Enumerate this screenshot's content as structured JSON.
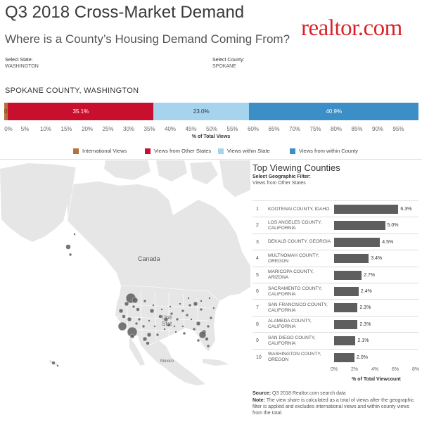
{
  "header": {
    "title": "Q3 2018 Cross-Market Demand",
    "subtitle": "Where is a County’s Housing Demand Coming From?",
    "logo": "realtor.com"
  },
  "filters": {
    "state_label": "Select State:",
    "state_value": "WASHINGTON",
    "county_label": "Select County:",
    "county_value": "SPOKANE"
  },
  "region_title": "SPOKANE COUNTY, WASHINGTON",
  "share_bar": {
    "segments": [
      {
        "name": "International Views",
        "value": 0.9,
        "label": "0.9%",
        "color": "#b5723a",
        "text_color": "#6b3a10"
      },
      {
        "name": "Views from Other States",
        "value": 35.1,
        "label": "35.1%",
        "color": "#c8102e",
        "text_color": "#ffffff"
      },
      {
        "name": "Views within State",
        "value": 23.0,
        "label": "23.0%",
        "color": "#a6d4ee",
        "text_color": "#333333"
      },
      {
        "name": "Views from within County",
        "value": 40.9,
        "label": "40.9%",
        "color": "#3b8fc6",
        "text_color": "#ffffff"
      }
    ],
    "ticks": [
      "0%",
      "5%",
      "10%",
      "15%",
      "20%",
      "25%",
      "30%",
      "35%",
      "40%",
      "45%",
      "50%",
      "55%",
      "60%",
      "65%",
      "70%",
      "75%",
      "80%",
      "85%",
      "90%",
      "95%"
    ],
    "axis_title": "% of Total Views"
  },
  "legend": [
    {
      "label": "International Views",
      "color": "#b5723a"
    },
    {
      "label": "Views from Other States",
      "color": "#c8102e"
    },
    {
      "label": "Views within State",
      "color": "#a6d4ee"
    },
    {
      "label": "Views from within County",
      "color": "#3b8fc6"
    }
  ],
  "map": {
    "labels": {
      "canada": "Canada",
      "us": "Unit\nStat",
      "mexico": "Mexico"
    },
    "land_color": "#e6e6e6",
    "ocean_color": "#ffffff",
    "bubble_color": "#5e5e5e"
  },
  "top_counties": {
    "title": "Top Viewing Counties",
    "filter_label": "Select Geographic Filter:",
    "filter_value": "Views from Other States",
    "rows": [
      {
        "rank": "1",
        "county": "KOOTENAI COUNTY, IDAHO",
        "value": 6.3,
        "label": "6.3%"
      },
      {
        "rank": "2",
        "county": "LOS ANGELES COUNTY, CALIFORNIA",
        "value": 5.0,
        "label": "5.0%"
      },
      {
        "rank": "3",
        "county": "DEKALB COUNTY, GEORGIA",
        "value": 4.5,
        "label": "4.5%"
      },
      {
        "rank": "4",
        "county": "MULTNOMAH COUNTY, OREGON",
        "value": 3.4,
        "label": "3.4%"
      },
      {
        "rank": "5",
        "county": "MARICOPA COUNTY, ARIZONA",
        "value": 2.7,
        "label": "2.7%"
      },
      {
        "rank": "6",
        "county": "SACRAMENTO COUNTY, CALIFORNIA",
        "value": 2.4,
        "label": "2.4%"
      },
      {
        "rank": "7",
        "county": "SAN FRANCISCO COUNTY, CALIFORNIA",
        "value": 2.3,
        "label": "2.3%"
      },
      {
        "rank": "8",
        "county": "ALAMEDA COUNTY, CALIFORNIA",
        "value": 2.3,
        "label": "2.3%"
      },
      {
        "rank": "9",
        "county": "SAN DIEGO COUNTY, CALIFORNIA",
        "value": 2.1,
        "label": "2.1%"
      },
      {
        "rank": "10",
        "county": "WASHINGTON COUNTY, OREGON",
        "value": 2.0,
        "label": "2.0%"
      }
    ],
    "ticks": [
      "0%",
      "2%",
      "4%",
      "6%",
      "8%"
    ],
    "axis_max": 8,
    "axis_title": "% of Total Viewcount"
  },
  "footer": {
    "source_label": "Source:",
    "source_text": "Q3 2018 Realtor.com search data",
    "note_label": "Note:",
    "note_text": "The view share is calculated as a total of views after the geographic filter is applied and excludes international views and within county views from the total."
  }
}
